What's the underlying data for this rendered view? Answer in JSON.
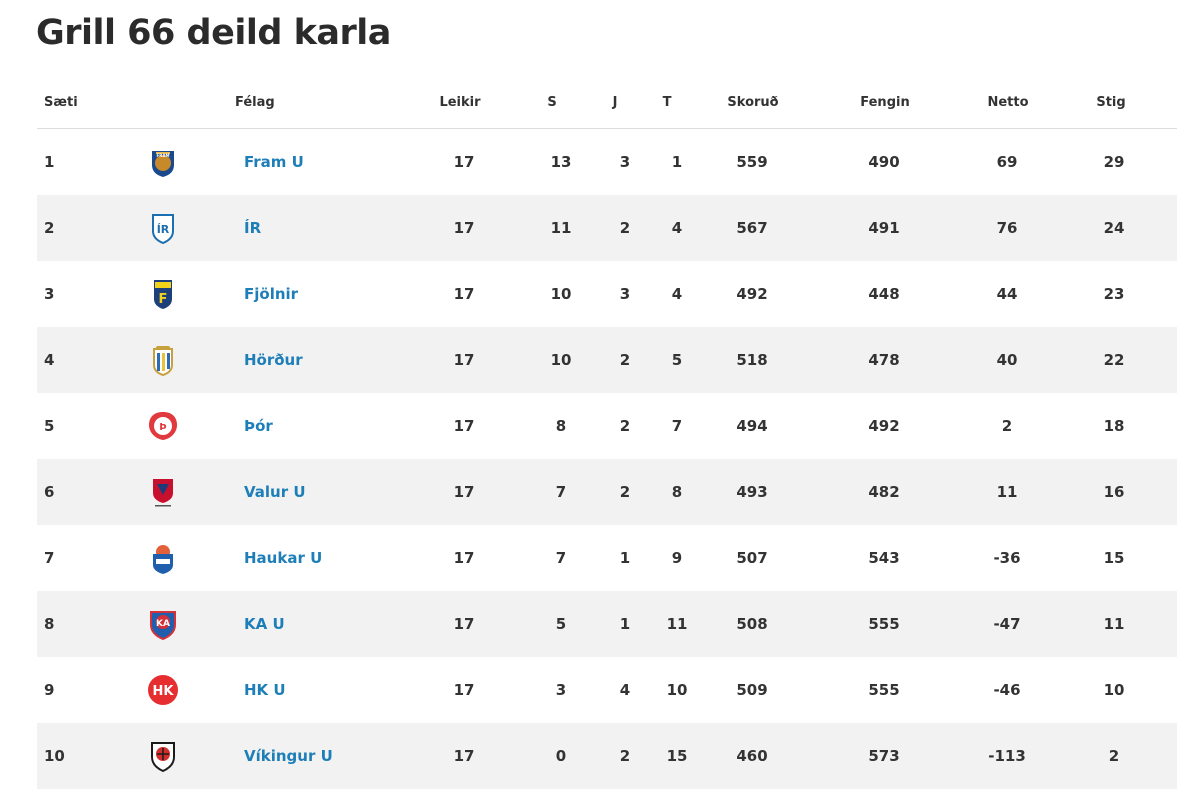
{
  "page": {
    "title": "Grill 66 deild karla"
  },
  "table": {
    "headers": {
      "position": "Sæti",
      "team": "Félag",
      "played": "Leikir",
      "won": "S",
      "drawn": "J",
      "lost": "T",
      "scored": "Skoruð",
      "conceded": "Fengin",
      "net": "Netto",
      "points": "Stig"
    },
    "rows": [
      {
        "pos": "1",
        "team": "Fram U",
        "logo": "fram-crest-icon",
        "gp": "17",
        "w": "13",
        "d": "3",
        "l": "1",
        "gf": "559",
        "ga": "490",
        "net": "69",
        "pts": "29"
      },
      {
        "pos": "2",
        "team": "ÍR",
        "logo": "ir-crest-icon",
        "gp": "17",
        "w": "11",
        "d": "2",
        "l": "4",
        "gf": "567",
        "ga": "491",
        "net": "76",
        "pts": "24"
      },
      {
        "pos": "3",
        "team": "Fjölnir",
        "logo": "fjolnir-crest-icon",
        "gp": "17",
        "w": "10",
        "d": "3",
        "l": "4",
        "gf": "492",
        "ga": "448",
        "net": "44",
        "pts": "23"
      },
      {
        "pos": "4",
        "team": "Hörður",
        "logo": "hordur-crest-icon",
        "gp": "17",
        "w": "10",
        "d": "2",
        "l": "5",
        "gf": "518",
        "ga": "478",
        "net": "40",
        "pts": "22"
      },
      {
        "pos": "5",
        "team": "Þór",
        "logo": "thor-crest-icon",
        "gp": "17",
        "w": "8",
        "d": "2",
        "l": "7",
        "gf": "494",
        "ga": "492",
        "net": "2",
        "pts": "18"
      },
      {
        "pos": "6",
        "team": "Valur U",
        "logo": "valur-crest-icon",
        "gp": "17",
        "w": "7",
        "d": "2",
        "l": "8",
        "gf": "493",
        "ga": "482",
        "net": "11",
        "pts": "16"
      },
      {
        "pos": "7",
        "team": "Haukar U",
        "logo": "haukar-crest-icon",
        "gp": "17",
        "w": "7",
        "d": "1",
        "l": "9",
        "gf": "507",
        "ga": "543",
        "net": "-36",
        "pts": "15"
      },
      {
        "pos": "8",
        "team": "KA U",
        "logo": "ka-crest-icon",
        "gp": "17",
        "w": "5",
        "d": "1",
        "l": "11",
        "gf": "508",
        "ga": "555",
        "net": "-47",
        "pts": "11"
      },
      {
        "pos": "9",
        "team": "HK U",
        "logo": "hk-crest-icon",
        "gp": "17",
        "w": "3",
        "d": "4",
        "l": "10",
        "gf": "509",
        "ga": "555",
        "net": "-46",
        "pts": "10"
      },
      {
        "pos": "10",
        "team": "Víkingur U",
        "logo": "vikingur-crest-icon",
        "gp": "17",
        "w": "0",
        "d": "2",
        "l": "15",
        "gf": "460",
        "ga": "573",
        "net": "-113",
        "pts": "2"
      }
    ]
  },
  "colors": {
    "team_link": "#1e7fb8",
    "row_alt_bg": "#f2f2f2",
    "text": "#333333"
  }
}
